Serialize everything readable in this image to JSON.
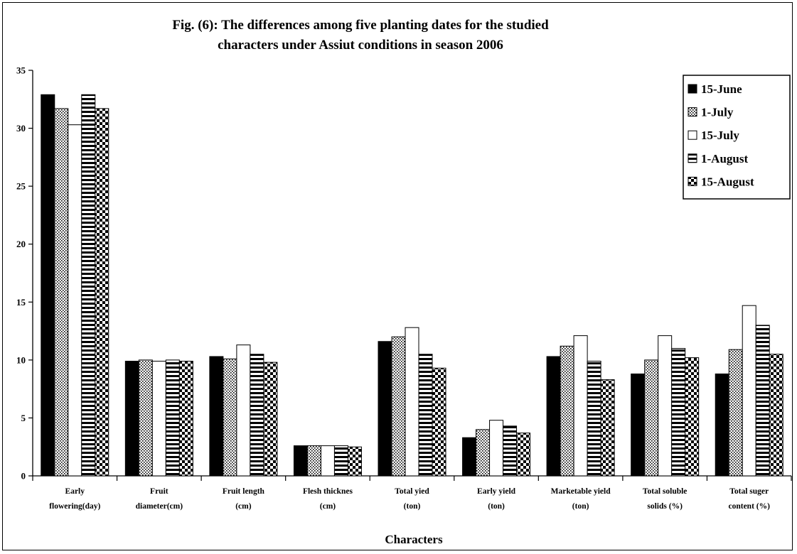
{
  "chart_data": {
    "type": "bar",
    "title_lines": [
      "Fig. (6): The differences among five planting dates for the studied",
      "characters under Assiut conditions in season 2006"
    ],
    "xlabel": "Characters",
    "ylabel": "",
    "ylim": [
      0,
      35
    ],
    "yticks": [
      0,
      5,
      10,
      15,
      20,
      25,
      30,
      35
    ],
    "grid": false,
    "legend_position": "top-right",
    "categories": [
      [
        "Early",
        "flowering(day)"
      ],
      [
        "Fruit",
        "diameter(cm)"
      ],
      [
        "Fruit length",
        "(cm)"
      ],
      [
        "Flesh thicknes",
        "(cm)"
      ],
      [
        "Total yied",
        "(ton)"
      ],
      [
        "Early yield",
        "(ton)"
      ],
      [
        "Marketable yield",
        "(ton)"
      ],
      [
        "Total soluble",
        "solids (%)"
      ],
      [
        "Total suger",
        "content (%)"
      ]
    ],
    "series": [
      {
        "name": "15-June",
        "pattern": "solid",
        "values": [
          32.9,
          9.9,
          10.3,
          2.6,
          11.6,
          3.3,
          10.3,
          8.8,
          8.8
        ]
      },
      {
        "name": "1-July",
        "pattern": "dots",
        "values": [
          31.7,
          10.0,
          10.1,
          2.6,
          12.0,
          4.0,
          11.2,
          10.0,
          10.9
        ]
      },
      {
        "name": "15-July",
        "pattern": "white",
        "values": [
          30.3,
          9.9,
          11.3,
          2.6,
          12.8,
          4.8,
          12.1,
          12.1,
          14.7
        ]
      },
      {
        "name": "1-August",
        "pattern": "hstripes",
        "values": [
          32.9,
          10.0,
          10.5,
          2.6,
          10.5,
          4.3,
          9.9,
          11.0,
          13.0
        ]
      },
      {
        "name": "15-August",
        "pattern": "checker",
        "values": [
          31.7,
          9.9,
          9.8,
          2.5,
          9.3,
          3.7,
          8.3,
          10.2,
          10.5
        ]
      }
    ]
  }
}
